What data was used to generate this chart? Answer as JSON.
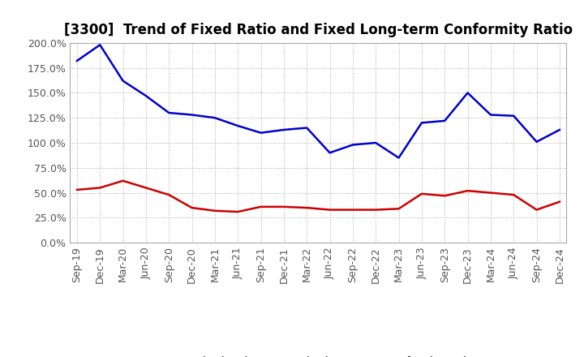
{
  "title": "[3300]  Trend of Fixed Ratio and Fixed Long-term Conformity Ratio",
  "x_labels": [
    "Sep-19",
    "Dec-19",
    "Mar-20",
    "Jun-20",
    "Sep-20",
    "Dec-20",
    "Mar-21",
    "Jun-21",
    "Sep-21",
    "Dec-21",
    "Mar-22",
    "Jun-22",
    "Sep-22",
    "Dec-22",
    "Mar-23",
    "Jun-23",
    "Sep-23",
    "Dec-23",
    "Mar-24",
    "Jun-24",
    "Sep-24",
    "Dec-24"
  ],
  "fixed_ratio": [
    182,
    198,
    162,
    147,
    130,
    128,
    125,
    117,
    110,
    113,
    115,
    90,
    98,
    100,
    85,
    120,
    122,
    150,
    128,
    127,
    101,
    113
  ],
  "fixed_lt_ratio": [
    53,
    55,
    62,
    55,
    48,
    35,
    32,
    31,
    36,
    36,
    35,
    33,
    33,
    33,
    34,
    49,
    47,
    52,
    50,
    48,
    33,
    41
  ],
  "fixed_ratio_color": "#0000cc",
  "fixed_lt_ratio_color": "#cc0000",
  "ylim": [
    0,
    200
  ],
  "background_color": "#ffffff",
  "grid_color": "#aaaaaa",
  "tick_color": "#555555",
  "legend_fixed_ratio": "Fixed Ratio",
  "legend_fixed_lt_ratio": "Fixed Long-term Conformity Ratio",
  "title_fontsize": 12,
  "tick_fontsize": 9,
  "legend_fontsize": 9,
  "linewidth": 1.8
}
